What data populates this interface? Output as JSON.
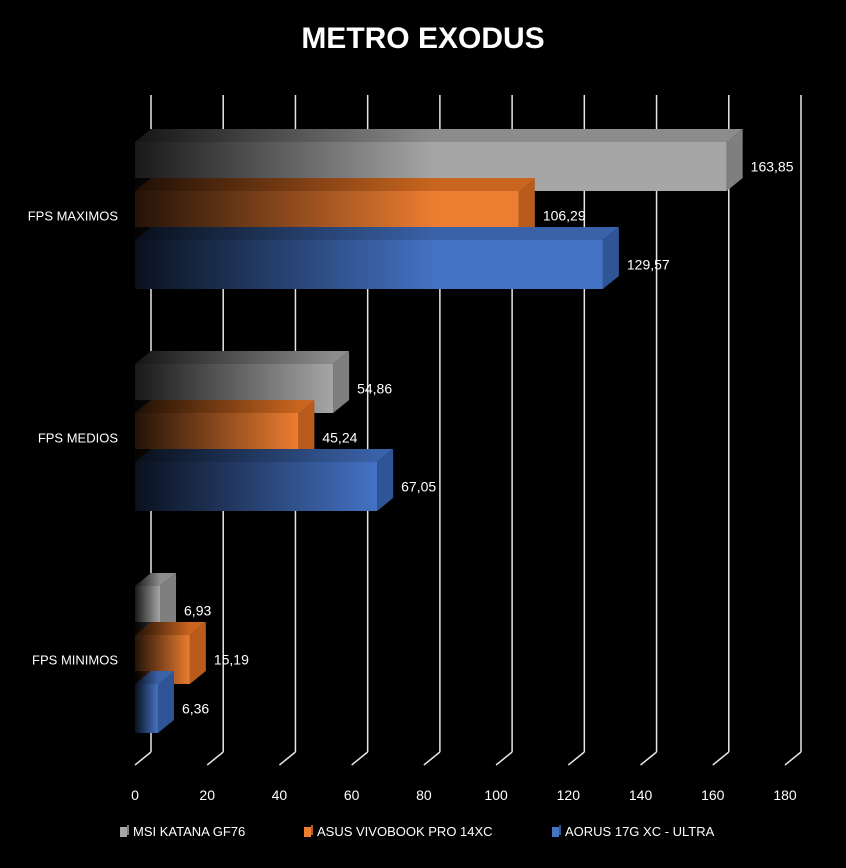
{
  "chart_data": {
    "type": "bar",
    "orientation": "horizontal",
    "title": "METRO EXODUS",
    "categories": [
      "FPS MAXIMOS",
      "FPS MEDIOS",
      "FPS MINIMOS"
    ],
    "series": [
      {
        "name": "MSI KATANA GF76",
        "color": "#a6a6a6",
        "side_color": "#7f7f7f",
        "top_color": "#8c8c8c",
        "values": [
          163.85,
          54.86,
          6.93
        ],
        "labels": [
          "163,85",
          "54,86",
          "6,93"
        ]
      },
      {
        "name": "ASUS VIVOBOOK PRO 14XC",
        "color": "#ed7d31",
        "side_color": "#b85b1d",
        "top_color": "#c9651f",
        "values": [
          106.29,
          45.24,
          15.19
        ],
        "labels": [
          "106,29",
          "45,24",
          "15,19"
        ]
      },
      {
        "name": "AORUS 17G XC - ULTRA",
        "color": "#4472c4",
        "side_color": "#2f5597",
        "top_color": "#3a62a8",
        "values": [
          129.57,
          67.05,
          6.36
        ],
        "labels": [
          "129,57",
          "67,05",
          "6,36"
        ]
      }
    ],
    "xlim": [
      0,
      180
    ],
    "ticks": [
      "0",
      "20",
      "40",
      "60",
      "80",
      "100",
      "120",
      "140",
      "160",
      "180"
    ],
    "grid": true,
    "legend_position": "bottom"
  }
}
